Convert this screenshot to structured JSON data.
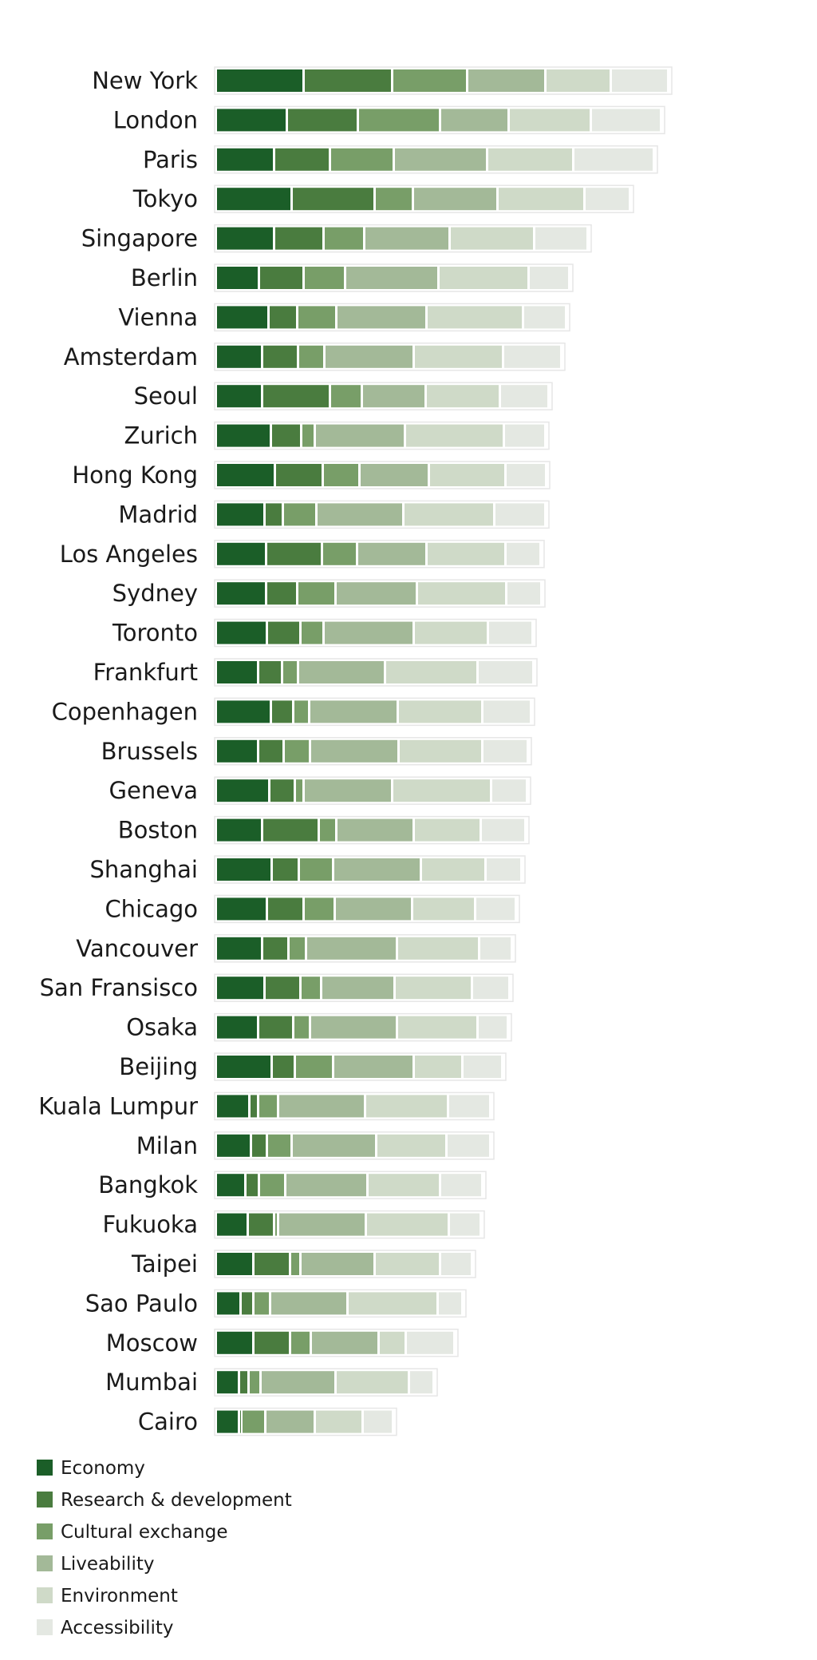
{
  "chart_data": {
    "type": "bar",
    "orientation": "horizontal",
    "stacked": true,
    "title": "",
    "xlabel": "",
    "ylabel": "",
    "grid": false,
    "legend_position": "bottom-left",
    "categories": [
      "New York",
      "London",
      "Paris",
      "Tokyo",
      "Singapore",
      "Berlin",
      "Vienna",
      "Amsterdam",
      "Seoul",
      "Zurich",
      "Hong Kong",
      "Madrid",
      "Los Angeles",
      "Sydney",
      "Toronto",
      "Frankfurt",
      "Copenhagen",
      "Brussels",
      "Geneva",
      "Boston",
      "Shanghai",
      "Chicago",
      "Vancouver",
      "San Fransisco",
      "Osaka",
      "Beijing",
      "Kuala Lumpur",
      "Milan",
      "Bangkok",
      "Fukuoka",
      "Taipei",
      "Sao Paulo",
      "Moscow",
      "Mumbai",
      "Cairo"
    ],
    "series": [
      {
        "name": "Economy",
        "color": "#1b5e28",
        "values": [
          110,
          89,
          73,
          95,
          73,
          54,
          66,
          58,
          58,
          69,
          74,
          61,
          63,
          63,
          64,
          53,
          69,
          53,
          67,
          58,
          70,
          64,
          58,
          61,
          53,
          70,
          42,
          44,
          37,
          40,
          47,
          31,
          47,
          29,
          29
        ]
      },
      {
        "name": "Research & development",
        "color": "#4a7c3f",
        "values": [
          111,
          89,
          70,
          104,
          62,
          56,
          36,
          45,
          85,
          38,
          60,
          23,
          70,
          39,
          42,
          30,
          28,
          32,
          32,
          71,
          34,
          46,
          33,
          45,
          44,
          29,
          11,
          20,
          17,
          33,
          46,
          16,
          46,
          12,
          3
        ]
      },
      {
        "name": "Cultural exchange",
        "color": "#789e68",
        "values": [
          94,
          103,
          80,
          48,
          51,
          52,
          49,
          33,
          40,
          17,
          46,
          42,
          44,
          48,
          29,
          20,
          20,
          33,
          11,
          22,
          43,
          39,
          22,
          26,
          21,
          48,
          25,
          31,
          33,
          5,
          13,
          21,
          26,
          15,
          30
        ]
      },
      {
        "name": "Liveability",
        "color": "#a3b998",
        "values": [
          98,
          86,
          117,
          106,
          107,
          117,
          113,
          112,
          80,
          113,
          87,
          109,
          87,
          102,
          113,
          109,
          111,
          111,
          111,
          97,
          110,
          97,
          114,
          92,
          109,
          101,
          109,
          106,
          103,
          110,
          93,
          97,
          85,
          94,
          62
        ]
      },
      {
        "name": "Environment",
        "color": "#cfdac8",
        "values": [
          82,
          103,
          108,
          109,
          106,
          113,
          121,
          112,
          93,
          124,
          96,
          114,
          99,
          112,
          93,
          116,
          106,
          105,
          124,
          84,
          81,
          79,
          103,
          97,
          101,
          61,
          104,
          88,
          91,
          104,
          82,
          113,
          34,
          92,
          60
        ]
      },
      {
        "name": "Accessibility",
        "color": "#e4e8e2",
        "values": [
          72,
          88,
          101,
          57,
          67,
          51,
          54,
          73,
          61,
          52,
          51,
          64,
          44,
          44,
          56,
          70,
          61,
          57,
          45,
          56,
          45,
          51,
          41,
          47,
          38,
          50,
          53,
          55,
          53,
          40,
          40,
          31,
          61,
          31,
          38
        ]
      }
    ]
  },
  "legend": [
    {
      "label": "Economy"
    },
    {
      "label": "Research & development"
    },
    {
      "label": "Cultural exchange"
    },
    {
      "label": "Liveability"
    },
    {
      "label": "Environment"
    },
    {
      "label": "Accessibility"
    }
  ]
}
